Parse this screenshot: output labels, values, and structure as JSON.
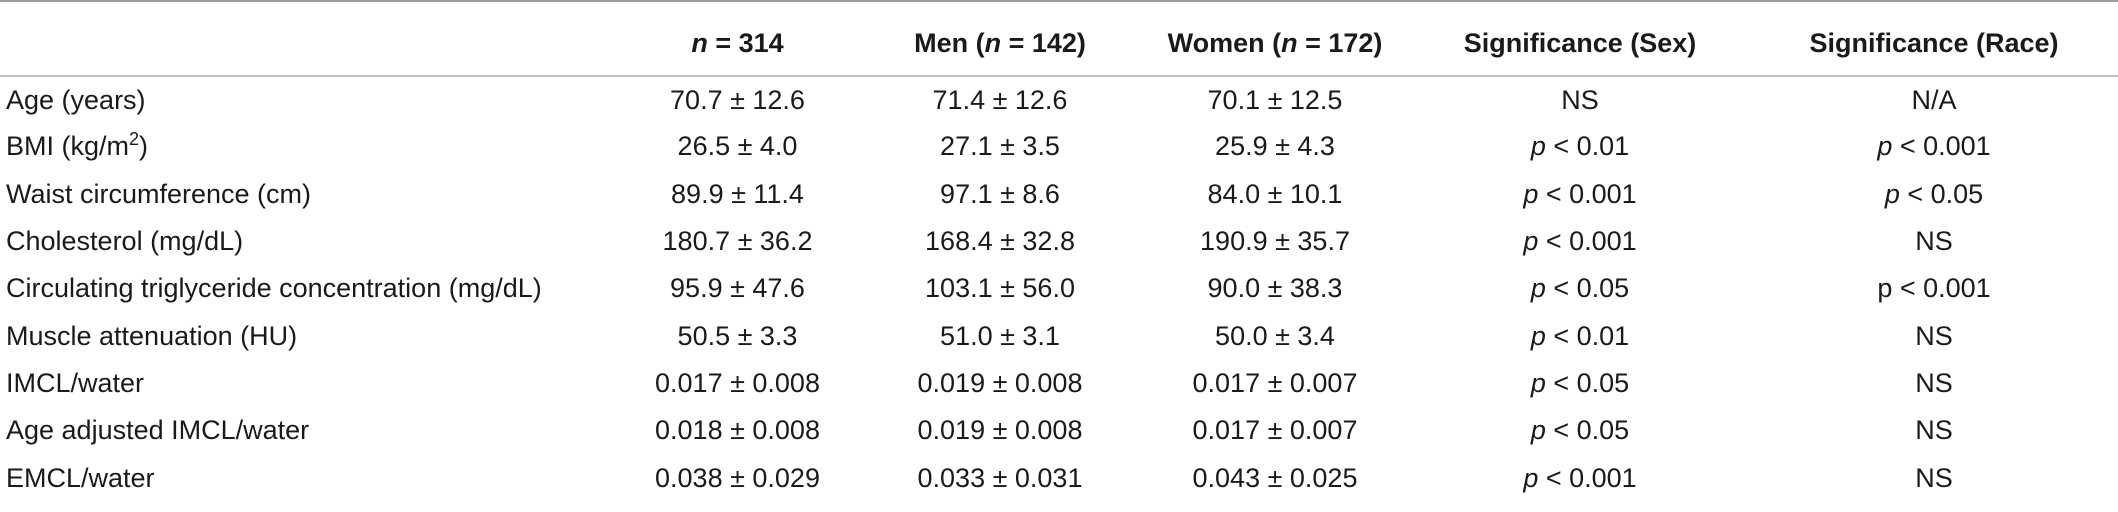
{
  "header": {
    "col0": "",
    "col1": {
      "n": "n",
      "rest": " = 314"
    },
    "col2": {
      "pre": "Men (",
      "n": "n",
      "rest": " = 142)"
    },
    "col3": {
      "pre": "Women (",
      "n": "n",
      "rest": " = 172)"
    },
    "col4": "Significance (Sex)",
    "col5": "Significance (Race)"
  },
  "rows": [
    {
      "label": "Age (years)",
      "all": "70.7 ± 12.6",
      "men": "71.4 ± 12.6",
      "women": "70.1 ± 12.5",
      "sex": {
        "p": "",
        "text": "NS"
      },
      "race": {
        "p": "",
        "text": "N/A"
      }
    },
    {
      "label_main": "BMI (kg/m",
      "label_sup": "2",
      "label_end": ")",
      "all": "26.5 ± 4.0",
      "men": "27.1 ± 3.5",
      "women": "25.9 ± 4.3",
      "sex": {
        "p": "p",
        "text": " < 0.01"
      },
      "race": {
        "p": "p",
        "text": " < 0.001"
      }
    },
    {
      "label": "Waist circumference (cm)",
      "all": "89.9 ± 11.4",
      "men": "97.1 ± 8.6",
      "women": "84.0 ± 10.1",
      "sex": {
        "p": "p",
        "text": " < 0.001"
      },
      "race": {
        "p": "p",
        "text": " < 0.05"
      }
    },
    {
      "label": "Cholesterol (mg/dL)",
      "all": "180.7 ± 36.2",
      "men": "168.4 ± 32.8",
      "women": "190.9 ± 35.7",
      "sex": {
        "p": "p",
        "text": " < 0.001"
      },
      "race": {
        "p": "",
        "text": "NS"
      }
    },
    {
      "label": "Circulating triglyceride concentration (mg/dL)",
      "all": "95.9 ± 47.6",
      "men": "103.1 ± 56.0",
      "women": "90.0 ± 38.3",
      "sex": {
        "p": "p",
        "text": " < 0.05"
      },
      "race": {
        "p": "",
        "text": "p < 0.001"
      }
    },
    {
      "label": "Muscle attenuation (HU)",
      "all": "50.5 ± 3.3",
      "men": "51.0 ± 3.1",
      "women": "50.0 ± 3.4",
      "sex": {
        "p": "p",
        "text": " < 0.01"
      },
      "race": {
        "p": "",
        "text": "NS"
      }
    },
    {
      "label": "IMCL/water",
      "all": "0.017 ± 0.008",
      "men": "0.019 ± 0.008",
      "women": "0.017 ± 0.007",
      "sex": {
        "p": "p",
        "text": " < 0.05"
      },
      "race": {
        "p": "",
        "text": "NS"
      }
    },
    {
      "label": "Age adjusted IMCL/water",
      "all": "0.018 ± 0.008",
      "men": "0.019 ± 0.008",
      "women": "0.017 ± 0.007",
      "sex": {
        "p": "p",
        "text": " < 0.05"
      },
      "race": {
        "p": "",
        "text": "NS"
      }
    },
    {
      "label": "EMCL/water",
      "all": "0.038 ± 0.029",
      "men": "0.033 ± 0.031",
      "women": "0.043 ± 0.025",
      "sex": {
        "p": "p",
        "text": " < 0.001"
      },
      "race": {
        "p": "",
        "text": "NS"
      }
    }
  ]
}
